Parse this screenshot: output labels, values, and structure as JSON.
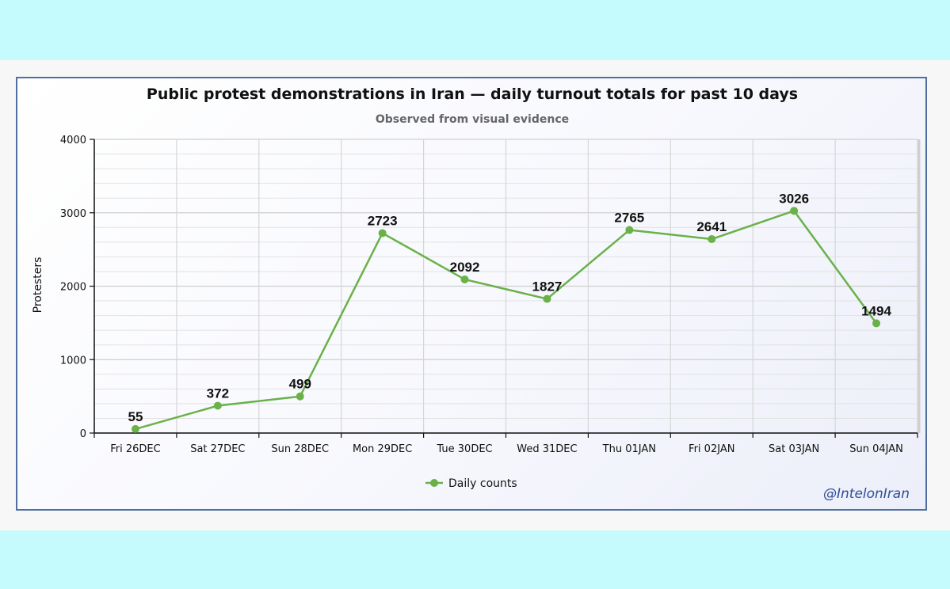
{
  "chart_data": {
    "type": "line",
    "title": "Public protest demonstrations in Iran — daily turnout totals for past 10 days",
    "subtitle": "Observed from visual evidence",
    "xlabel": "",
    "ylabel": "Protesters",
    "categories": [
      "Fri 26DEC",
      "Sat 27DEC",
      "Sun 28DEC",
      "Mon 29DEC",
      "Tue 30DEC",
      "Wed 31DEC",
      "Thu 01JAN",
      "Fri 02JAN",
      "Sat 03JAN",
      "Sun 04JAN"
    ],
    "series": [
      {
        "name": "Daily counts",
        "values": [
          55,
          372,
          499,
          2723,
          2092,
          1827,
          2765,
          2641,
          3026,
          1494
        ],
        "color": "#6ab14a"
      }
    ],
    "ylim": [
      0,
      4000
    ],
    "yticks": [
      0,
      1000,
      2000,
      3000,
      4000
    ],
    "grid": true,
    "legend": "bottom-center"
  },
  "credit": "@IntelonIran",
  "colors": {
    "line": "#6ab14a",
    "frame": "#4f6fa0",
    "background": "#c5fbfc"
  }
}
